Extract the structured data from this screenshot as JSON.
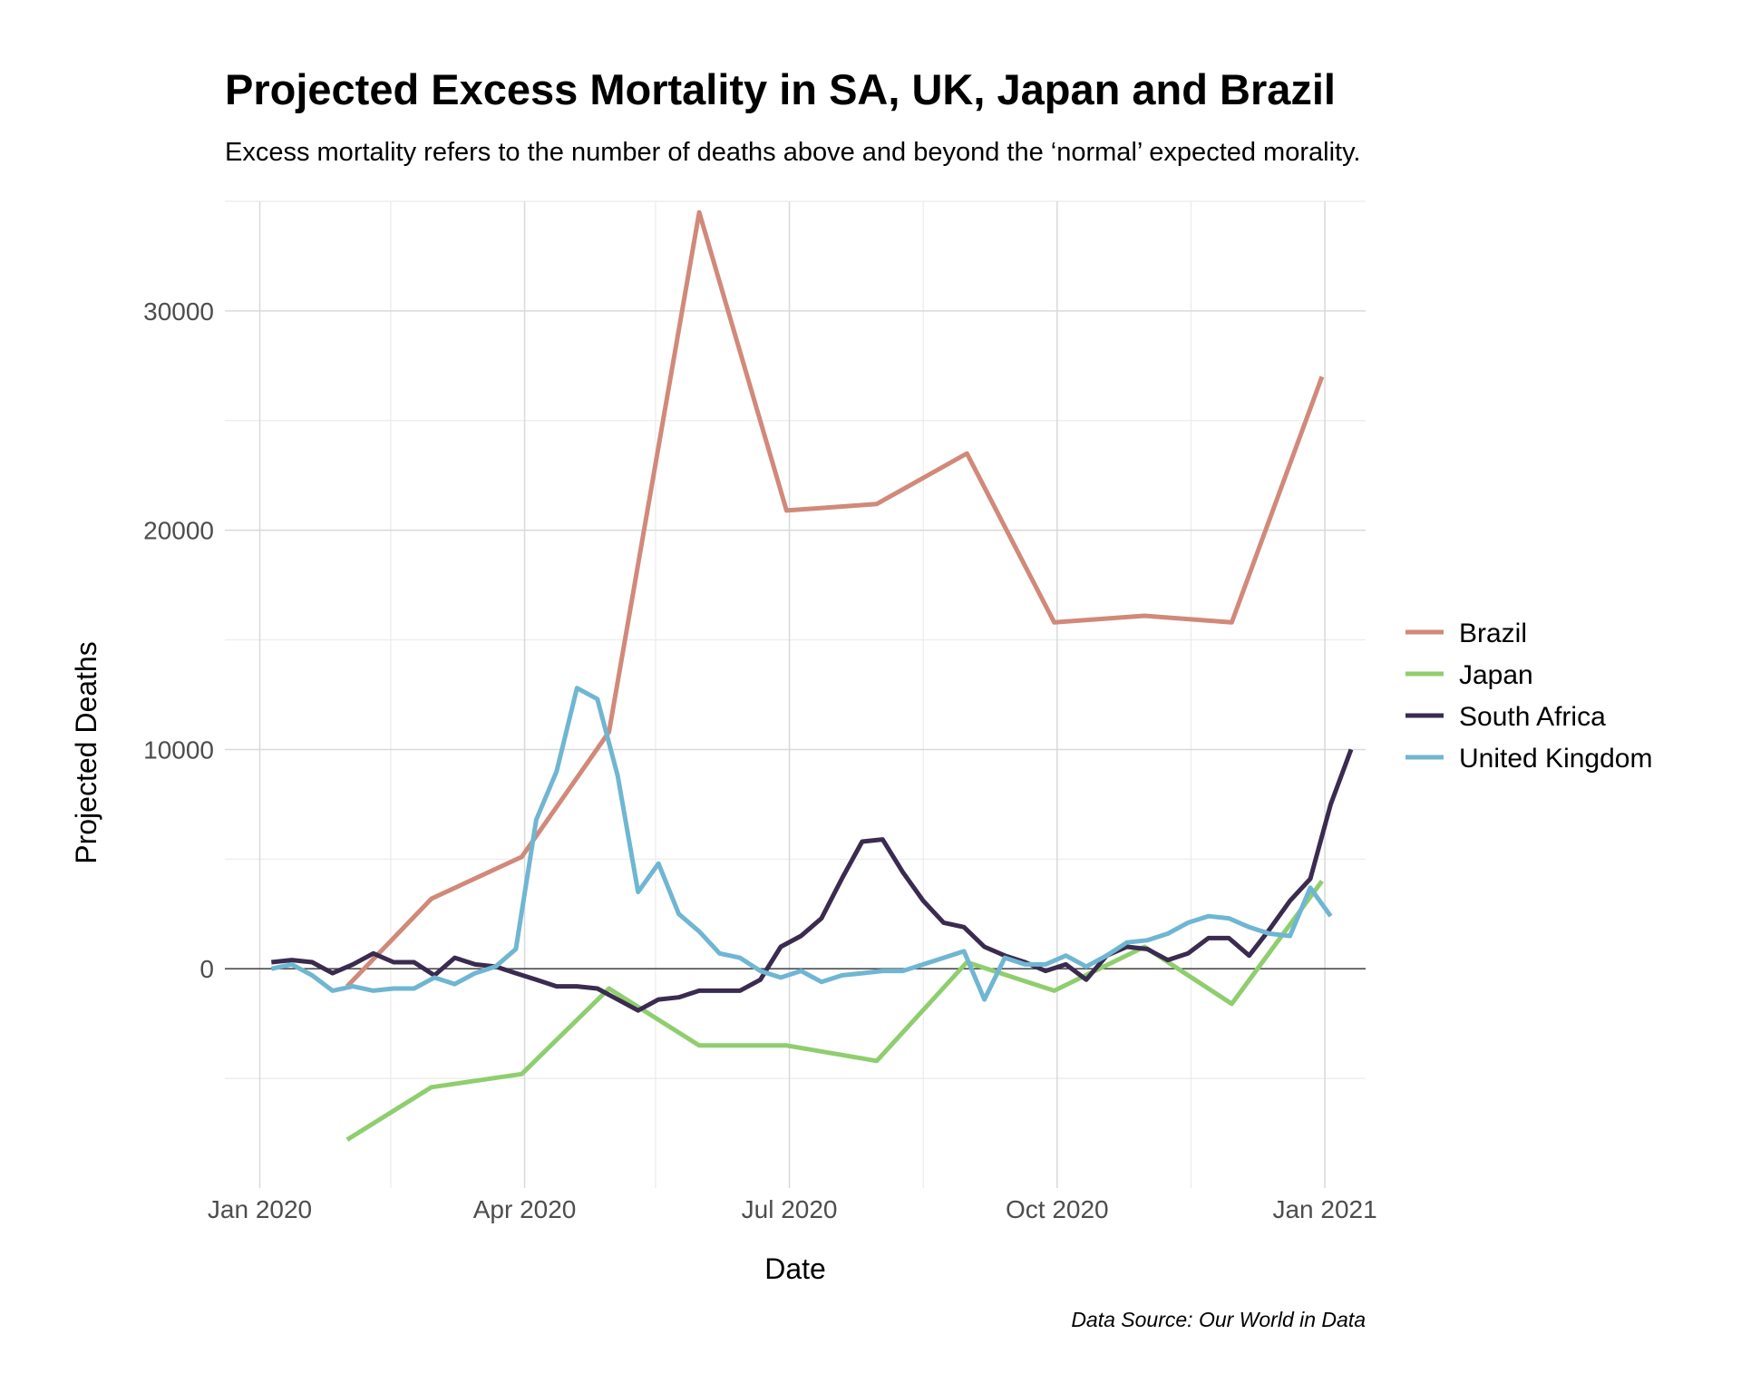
{
  "chart_data": {
    "type": "line",
    "title": "Projected Excess Mortality in SA, UK, Japan and Brazil",
    "subtitle": "Excess mortality refers to the number of deaths above and beyond the ‘normal’ expected morality.",
    "xlabel": "Date",
    "ylabel": "Projected Deaths",
    "caption": "Data Source: Our World in Data",
    "xlim": [
      "2019-12-20",
      "2021-01-15"
    ],
    "ylim": [
      -10000,
      35000
    ],
    "x_ticks": [
      {
        "date": "2020-01-01",
        "label": "Jan 2020"
      },
      {
        "date": "2020-04-01",
        "label": "Apr 2020"
      },
      {
        "date": "2020-07-01",
        "label": "Jul 2020"
      },
      {
        "date": "2020-10-01",
        "label": "Oct 2020"
      },
      {
        "date": "2021-01-01",
        "label": "Jan 2021"
      }
    ],
    "x_minor_ticks": [
      "2020-02-15",
      "2020-05-16",
      "2020-08-16",
      "2020-11-16"
    ],
    "y_ticks": [
      {
        "value": 0,
        "label": "0"
      },
      {
        "value": 10000,
        "label": "10000"
      },
      {
        "value": 20000,
        "label": "20000"
      },
      {
        "value": 30000,
        "label": "30000"
      }
    ],
    "y_minor_ticks": [
      -5000,
      5000,
      15000,
      25000,
      35000
    ],
    "grid": true,
    "legend_position": "right",
    "series": [
      {
        "name": "Brazil",
        "color": "#d1897a",
        "points": [
          [
            "2020-01-31",
            -800
          ],
          [
            "2020-02-29",
            3200
          ],
          [
            "2020-03-31",
            5100
          ],
          [
            "2020-04-30",
            10800
          ],
          [
            "2020-05-31",
            34500
          ],
          [
            "2020-06-30",
            20900
          ],
          [
            "2020-07-31",
            21200
          ],
          [
            "2020-08-31",
            23500
          ],
          [
            "2020-09-30",
            15800
          ],
          [
            "2020-10-31",
            16100
          ],
          [
            "2020-11-30",
            15800
          ],
          [
            "2020-12-31",
            27000
          ]
        ]
      },
      {
        "name": "Japan",
        "color": "#8fce6e",
        "points": [
          [
            "2020-01-31",
            -7800
          ],
          [
            "2020-02-29",
            -5400
          ],
          [
            "2020-03-31",
            -4800
          ],
          [
            "2020-04-30",
            -900
          ],
          [
            "2020-05-31",
            -3500
          ],
          [
            "2020-06-30",
            -3500
          ],
          [
            "2020-07-31",
            -4200
          ],
          [
            "2020-08-31",
            300
          ],
          [
            "2020-09-30",
            -1000
          ],
          [
            "2020-10-31",
            1000
          ],
          [
            "2020-11-30",
            -1600
          ],
          [
            "2020-12-31",
            4000
          ]
        ]
      },
      {
        "name": "South Africa",
        "color": "#3a2b4f",
        "points": [
          [
            "2020-01-05",
            300
          ],
          [
            "2020-01-12",
            400
          ],
          [
            "2020-01-19",
            300
          ],
          [
            "2020-01-26",
            -200
          ],
          [
            "2020-02-02",
            200
          ],
          [
            "2020-02-09",
            700
          ],
          [
            "2020-02-16",
            300
          ],
          [
            "2020-02-23",
            300
          ],
          [
            "2020-03-01",
            -300
          ],
          [
            "2020-03-08",
            500
          ],
          [
            "2020-03-15",
            200
          ],
          [
            "2020-03-22",
            100
          ],
          [
            "2020-03-29",
            -200
          ],
          [
            "2020-04-05",
            -500
          ],
          [
            "2020-04-12",
            -800
          ],
          [
            "2020-04-19",
            -800
          ],
          [
            "2020-04-26",
            -900
          ],
          [
            "2020-05-03",
            -1400
          ],
          [
            "2020-05-10",
            -1900
          ],
          [
            "2020-05-17",
            -1400
          ],
          [
            "2020-05-24",
            -1300
          ],
          [
            "2020-05-31",
            -1000
          ],
          [
            "2020-06-07",
            -1000
          ],
          [
            "2020-06-14",
            -1000
          ],
          [
            "2020-06-21",
            -500
          ],
          [
            "2020-06-28",
            1000
          ],
          [
            "2020-07-05",
            1500
          ],
          [
            "2020-07-12",
            2300
          ],
          [
            "2020-07-19",
            4100
          ],
          [
            "2020-07-26",
            5800
          ],
          [
            "2020-08-02",
            5900
          ],
          [
            "2020-08-09",
            4400
          ],
          [
            "2020-08-16",
            3100
          ],
          [
            "2020-08-23",
            2100
          ],
          [
            "2020-08-30",
            1900
          ],
          [
            "2020-09-06",
            1000
          ],
          [
            "2020-09-13",
            600
          ],
          [
            "2020-09-20",
            300
          ],
          [
            "2020-09-27",
            -100
          ],
          [
            "2020-10-04",
            200
          ],
          [
            "2020-10-11",
            -500
          ],
          [
            "2020-10-18",
            600
          ],
          [
            "2020-10-25",
            1000
          ],
          [
            "2020-11-01",
            900
          ],
          [
            "2020-11-08",
            400
          ],
          [
            "2020-11-15",
            700
          ],
          [
            "2020-11-22",
            1400
          ],
          [
            "2020-11-29",
            1400
          ],
          [
            "2020-12-06",
            600
          ],
          [
            "2020-12-13",
            1800
          ],
          [
            "2020-12-20",
            3100
          ],
          [
            "2020-12-27",
            4100
          ],
          [
            "2021-01-03",
            7500
          ],
          [
            "2021-01-10",
            10000
          ]
        ]
      },
      {
        "name": "United Kingdom",
        "color": "#6fb6d2",
        "points": [
          [
            "2020-01-05",
            0
          ],
          [
            "2020-01-12",
            200
          ],
          [
            "2020-01-19",
            -300
          ],
          [
            "2020-01-26",
            -1000
          ],
          [
            "2020-02-02",
            -800
          ],
          [
            "2020-02-09",
            -1000
          ],
          [
            "2020-02-16",
            -900
          ],
          [
            "2020-02-23",
            -900
          ],
          [
            "2020-03-01",
            -400
          ],
          [
            "2020-03-08",
            -700
          ],
          [
            "2020-03-15",
            -200
          ],
          [
            "2020-03-22",
            100
          ],
          [
            "2020-03-29",
            900
          ],
          [
            "2020-04-05",
            6800
          ],
          [
            "2020-04-12",
            9000
          ],
          [
            "2020-04-19",
            12800
          ],
          [
            "2020-04-26",
            12300
          ],
          [
            "2020-05-03",
            8800
          ],
          [
            "2020-05-10",
            3500
          ],
          [
            "2020-05-17",
            4800
          ],
          [
            "2020-05-24",
            2500
          ],
          [
            "2020-05-31",
            1700
          ],
          [
            "2020-06-07",
            700
          ],
          [
            "2020-06-14",
            500
          ],
          [
            "2020-06-21",
            -100
          ],
          [
            "2020-06-28",
            -400
          ],
          [
            "2020-07-05",
            -100
          ],
          [
            "2020-07-12",
            -600
          ],
          [
            "2020-07-19",
            -300
          ],
          [
            "2020-07-26",
            -200
          ],
          [
            "2020-08-02",
            -100
          ],
          [
            "2020-08-09",
            -100
          ],
          [
            "2020-08-16",
            200
          ],
          [
            "2020-08-23",
            500
          ],
          [
            "2020-08-30",
            800
          ],
          [
            "2020-09-06",
            -1400
          ],
          [
            "2020-09-13",
            500
          ],
          [
            "2020-09-20",
            200
          ],
          [
            "2020-09-27",
            200
          ],
          [
            "2020-10-04",
            600
          ],
          [
            "2020-10-11",
            100
          ],
          [
            "2020-10-18",
            600
          ],
          [
            "2020-10-25",
            1200
          ],
          [
            "2020-11-01",
            1300
          ],
          [
            "2020-11-08",
            1600
          ],
          [
            "2020-11-15",
            2100
          ],
          [
            "2020-11-22",
            2400
          ],
          [
            "2020-11-29",
            2300
          ],
          [
            "2020-12-06",
            1900
          ],
          [
            "2020-12-13",
            1600
          ],
          [
            "2020-12-20",
            1500
          ],
          [
            "2020-12-27",
            3700
          ],
          [
            "2021-01-03",
            2400
          ]
        ]
      }
    ]
  }
}
